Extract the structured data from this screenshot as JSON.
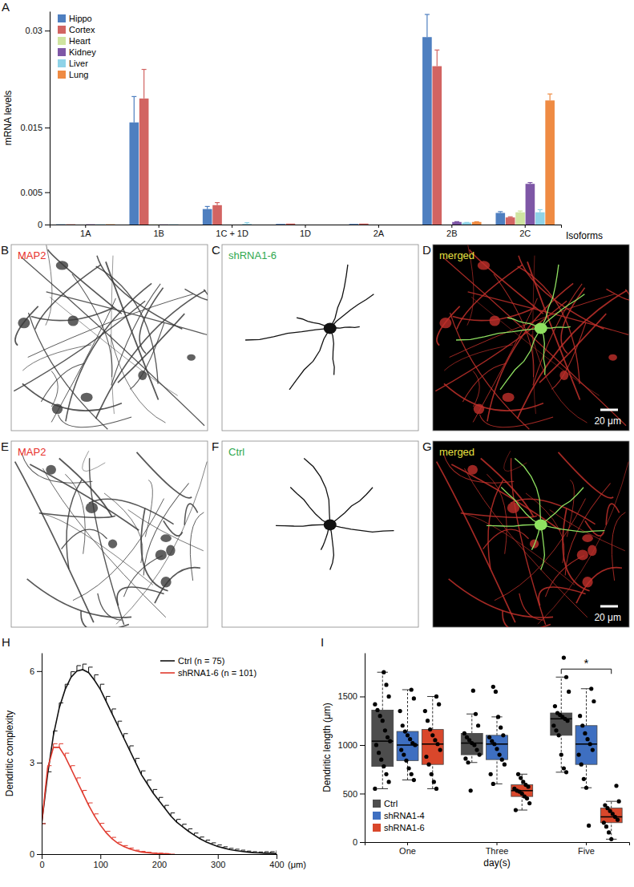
{
  "chart_data": [
    {
      "panel": "A",
      "type": "bar",
      "ylabel": "mRNA levels",
      "xlabel": "Isoforms",
      "categories": [
        "1A",
        "1B",
        "1C + 1D",
        "1D",
        "2A",
        "2B",
        "2C"
      ],
      "ylim": [
        0,
        0.033
      ],
      "yticks": [
        0,
        0.005,
        0.015,
        0.03
      ],
      "legend": "top-left",
      "series": [
        {
          "name": "Hippo",
          "color": "#4e7fc0",
          "values": [
            5e-05,
            0.0158,
            0.0024,
            0.0001,
            0.0001,
            0.029,
            0.0018
          ],
          "errors": [
            null,
            0.004,
            0.0004,
            null,
            null,
            0.0035,
            0.0002
          ]
        },
        {
          "name": "Cortex",
          "color": "#d26462",
          "values": [
            5e-05,
            0.0195,
            0.003,
            0.00015,
            0.00015,
            0.0245,
            0.0011
          ],
          "errors": [
            null,
            0.0045,
            0.0004,
            null,
            null,
            0.0025,
            0.0001
          ]
        },
        {
          "name": "Heart",
          "color": "#cfe4a0",
          "values": [
            0,
            3e-05,
            0,
            0,
            0,
            0,
            0.0019
          ],
          "errors": [
            null,
            null,
            null,
            null,
            null,
            null,
            0.0002
          ]
        },
        {
          "name": "Kidney",
          "color": "#7e57a6",
          "values": [
            5e-05,
            3e-05,
            0,
            0,
            0,
            0.0004,
            0.0063
          ],
          "errors": [
            null,
            null,
            null,
            null,
            null,
            5e-05,
            0.0002
          ]
        },
        {
          "name": "Liver",
          "color": "#8fd3e8",
          "values": [
            5e-05,
            5e-05,
            0.0001,
            0,
            0,
            0.0003,
            0.0019
          ],
          "errors": [
            null,
            null,
            0.0002,
            null,
            null,
            3e-05,
            0.0004
          ]
        },
        {
          "name": "Lung",
          "color": "#ef8b43",
          "values": [
            5e-05,
            0,
            0,
            0,
            0,
            0.0004,
            0.0192
          ],
          "errors": [
            null,
            null,
            null,
            null,
            null,
            4e-05,
            0.001
          ]
        }
      ]
    },
    {
      "panel": "H",
      "type": "line",
      "ylabel": "Dendritic complexity",
      "xlabel": "(μm)",
      "x": [
        0,
        10,
        20,
        30,
        40,
        50,
        60,
        70,
        80,
        90,
        100,
        110,
        120,
        130,
        140,
        150,
        160,
        170,
        180,
        190,
        200,
        210,
        220,
        230,
        240,
        250,
        260,
        270,
        280,
        290,
        300,
        310,
        320,
        330,
        340,
        350,
        360,
        370,
        380,
        390,
        400
      ],
      "xlim": [
        0,
        400
      ],
      "xticks": [
        0,
        100,
        200,
        300,
        400
      ],
      "ylim": [
        0,
        6.6
      ],
      "yticks": [
        0,
        3,
        6
      ],
      "legend": "top-right",
      "series": [
        {
          "name": "Ctrl (n = 75)",
          "color": "#111111",
          "values": [
            1.0,
            2.6,
            3.9,
            4.8,
            5.4,
            5.8,
            6.0,
            6.05,
            5.95,
            5.7,
            5.4,
            5.0,
            4.6,
            4.2,
            3.8,
            3.4,
            3.0,
            2.6,
            2.3,
            2.0,
            1.75,
            1.5,
            1.25,
            1.05,
            0.9,
            0.75,
            0.62,
            0.5,
            0.4,
            0.32,
            0.25,
            0.2,
            0.15,
            0.12,
            0.09,
            0.07,
            0.05,
            0.04,
            0.03,
            0.03,
            0.02
          ],
          "errors": [
            0,
            0.1,
            0.14,
            0.16,
            0.17,
            0.18,
            0.18,
            0.18,
            0.18,
            0.18,
            0.17,
            0.17,
            0.16,
            0.16,
            0.15,
            0.15,
            0.14,
            0.13,
            0.13,
            0.12,
            0.11,
            0.1,
            0.1,
            0.09,
            0.08,
            0.08,
            0.07,
            0.06,
            0.06,
            0.05,
            0.05,
            0.04,
            0.04,
            0.04,
            0.04,
            0.03,
            0.03,
            0.03,
            0.05,
            0.05,
            0.1
          ]
        },
        {
          "name": "shRNA1-6 (n = 101)",
          "color": "#e03a2e",
          "values": [
            1.0,
            2.8,
            3.5,
            3.5,
            3.2,
            2.8,
            2.4,
            2.0,
            1.6,
            1.25,
            0.95,
            0.7,
            0.5,
            0.35,
            0.25,
            0.17,
            0.11,
            0.07,
            0.05,
            0.03,
            0.02,
            0.01,
            0.0,
            null,
            null,
            null,
            null,
            null,
            null,
            null,
            null,
            null,
            null,
            null,
            null,
            null,
            null,
            null,
            null,
            null,
            null
          ],
          "errors": [
            0,
            0.1,
            0.12,
            0.12,
            0.11,
            0.1,
            0.1,
            0.09,
            0.08,
            0.07,
            0.06,
            0.05,
            0.05,
            0.04,
            0.03,
            0.03,
            0.02,
            0.02,
            0.01,
            0.01,
            0.01,
            0.01,
            0.0,
            null,
            null,
            null,
            null,
            null,
            null,
            null,
            null,
            null,
            null,
            null,
            null,
            null,
            null,
            null,
            null,
            null,
            null
          ]
        }
      ]
    },
    {
      "panel": "I",
      "type": "box",
      "ylabel": "Dendritic length (μm)",
      "xlabel": "day(s)",
      "categories": [
        "One",
        "Three",
        "Five"
      ],
      "ylim": [
        0,
        1950
      ],
      "yticks": [
        0,
        500,
        1000,
        1500
      ],
      "legend": "bottom-left",
      "series": [
        {
          "name": "Ctrl",
          "color": "#4d4d4d",
          "boxes": [
            {
              "min": 550,
              "q1": 780,
              "median": 1040,
              "q3": 1360,
              "max": 1750,
              "points": [
                550,
                620,
                700,
                780,
                850,
                920,
                1000,
                1040,
                1080,
                1150,
                1250,
                1300,
                1360,
                1420,
                1500,
                1620,
                1750
              ]
            },
            {
              "min": 820,
              "q1": 900,
              "median": 1020,
              "q3": 1120,
              "max": 1320,
              "points": [
                530,
                820,
                860,
                900,
                950,
                1000,
                1020,
                1050,
                1080,
                1120,
                1200,
                1320,
                1560
              ]
            },
            {
              "min": 720,
              "q1": 1100,
              "median": 1270,
              "q3": 1330,
              "max": 1700,
              "points": [
                720,
                760,
                900,
                1100,
                1150,
                1200,
                1250,
                1270,
                1290,
                1310,
                1330,
                1400,
                1550,
                1700,
                1900
              ]
            }
          ]
        },
        {
          "name": "shRNA1-4",
          "color": "#3e6fc1",
          "boxes": [
            {
              "min": 640,
              "q1": 840,
              "median": 1000,
              "q3": 1140,
              "max": 1570,
              "points": [
                640,
                700,
                760,
                840,
                900,
                950,
                1000,
                1020,
                1060,
                1100,
                1140,
                1200,
                1350,
                1480,
                1570
              ]
            },
            {
              "min": 600,
              "q1": 850,
              "median": 1010,
              "q3": 1100,
              "max": 1290,
              "points": [
                600,
                700,
                800,
                850,
                900,
                960,
                1010,
                1040,
                1080,
                1100,
                1180,
                1290,
                1550,
                1600
              ]
            },
            {
              "min": 560,
              "q1": 800,
              "median": 1010,
              "q3": 1200,
              "max": 1580,
              "points": [
                170,
                560,
                650,
                800,
                900,
                950,
                1010,
                1060,
                1120,
                1200,
                1300,
                1450,
                1580
              ]
            }
          ]
        },
        {
          "name": "shRNA1-6",
          "color": "#d9472b",
          "boxes": [
            {
              "min": 550,
              "q1": 800,
              "median": 1010,
              "q3": 1160,
              "max": 1500,
              "points": [
                550,
                620,
                700,
                800,
                880,
                950,
                1010,
                1050,
                1100,
                1160,
                1250,
                1350,
                1420,
                1500
              ]
            },
            {
              "min": 330,
              "q1": 470,
              "median": 530,
              "q3": 590,
              "max": 700,
              "points": [
                330,
                400,
                450,
                470,
                500,
                520,
                530,
                550,
                570,
                590,
                620,
                660,
                700
              ]
            },
            {
              "min": 30,
              "q1": 200,
              "median": 260,
              "q3": 350,
              "max": 420,
              "points": [
                30,
                100,
                160,
                200,
                230,
                260,
                290,
                320,
                350,
                380,
                420,
                580
              ]
            }
          ]
        }
      ],
      "annotations": [
        {
          "text": "*",
          "category": "Five",
          "from": "Ctrl",
          "to": "shRNA1-6"
        }
      ]
    }
  ],
  "image_panels": [
    {
      "panel": "B",
      "label": "MAP2",
      "color": "#e8302a",
      "background": "#ffffff"
    },
    {
      "panel": "C",
      "label": "shRNA1-6",
      "color": "#2fa84f",
      "background": "#ffffff"
    },
    {
      "panel": "D",
      "label": "merged",
      "color": "#e8e040",
      "background": "#000000",
      "scale_bar": "20 μm"
    },
    {
      "panel": "E",
      "label": "MAP2",
      "color": "#e8302a",
      "background": "#ffffff"
    },
    {
      "panel": "F",
      "label": "Ctrl",
      "color": "#2fa84f",
      "background": "#ffffff"
    },
    {
      "panel": "G",
      "label": "merged",
      "color": "#e8e040",
      "background": "#000000",
      "scale_bar": "20 μm"
    }
  ]
}
